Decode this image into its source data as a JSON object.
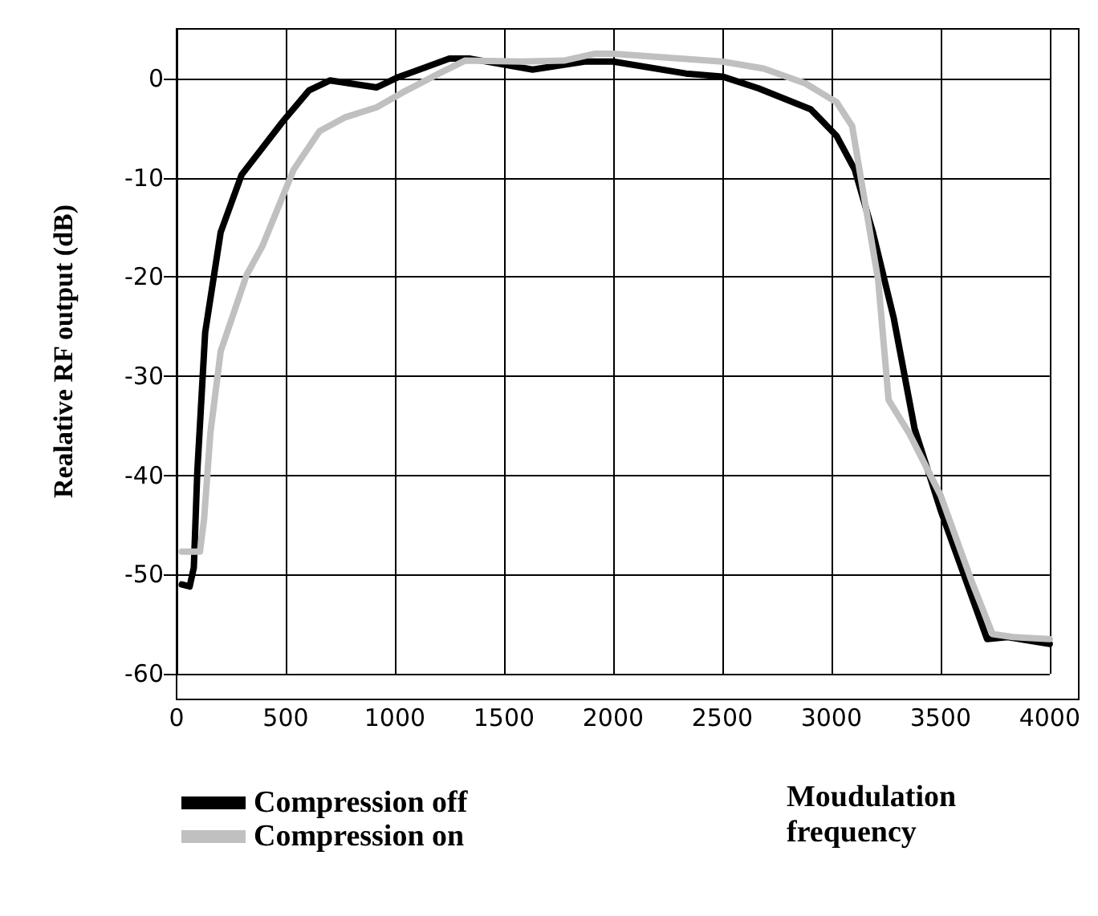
{
  "chart_data": {
    "type": "line",
    "xlabel": "Moudulation\nfrequency",
    "ylabel": "Realative RF output (dB)",
    "xlim": [
      0,
      4000
    ],
    "xticks": [
      0,
      500,
      1000,
      1500,
      2000,
      2500,
      3000,
      3500,
      4000
    ],
    "ylim": [
      -60,
      5
    ],
    "yticks": [
      -60,
      -50,
      -40,
      -30,
      -20,
      -10,
      0
    ],
    "grid": true,
    "legend": "bottom left",
    "line_style": "solid",
    "marker": "none",
    "series": [
      {
        "name": "Compression off",
        "color": "#000000",
        "x": [
          24,
          60,
          79,
          95,
          131,
          202,
          298,
          488,
          607,
          702,
          917,
          1012,
          1250,
          1345,
          1631,
          1869,
          2000,
          2333,
          2500,
          2667,
          2905,
          3024,
          3107,
          3190,
          3286,
          3381,
          3500,
          3618,
          3713,
          3808,
          4000
        ],
        "values": [
          -51,
          -51.2,
          -49.3,
          -39.6,
          -25.6,
          -15.5,
          -9.7,
          -4.3,
          -1.2,
          -0.2,
          -0.9,
          0.1,
          2,
          2,
          0.9,
          1.7,
          1.7,
          0.5,
          0.2,
          -1,
          -3.1,
          -5.8,
          -9.2,
          -15.5,
          -24.2,
          -35.3,
          -43.5,
          -50.7,
          -56.5,
          -56.3,
          -57
        ]
      },
      {
        "name": "Compression on",
        "color": "#c0c0c0",
        "x": [
          24,
          107,
          126,
          155,
          202,
          321,
          393,
          536,
          655,
          774,
          917,
          1036,
          1202,
          1321,
          1583,
          1774,
          1917,
          2000,
          2500,
          2690,
          2881,
          3024,
          3095,
          3143,
          3214,
          3262,
          3357,
          3500,
          3643,
          3738,
          3833,
          4000
        ],
        "values": [
          -47.7,
          -47.7,
          -44.4,
          -35.7,
          -27.5,
          -19.8,
          -16.9,
          -9.2,
          -5.3,
          -3.9,
          -2.9,
          -1.4,
          0.5,
          1.8,
          1.7,
          1.8,
          2.5,
          2.5,
          1.7,
          1,
          -0.5,
          -2.4,
          -4.8,
          -11.1,
          -20.3,
          -32.4,
          -35.8,
          -42,
          -50.7,
          -56,
          -56.3,
          -56.5
        ]
      }
    ]
  }
}
